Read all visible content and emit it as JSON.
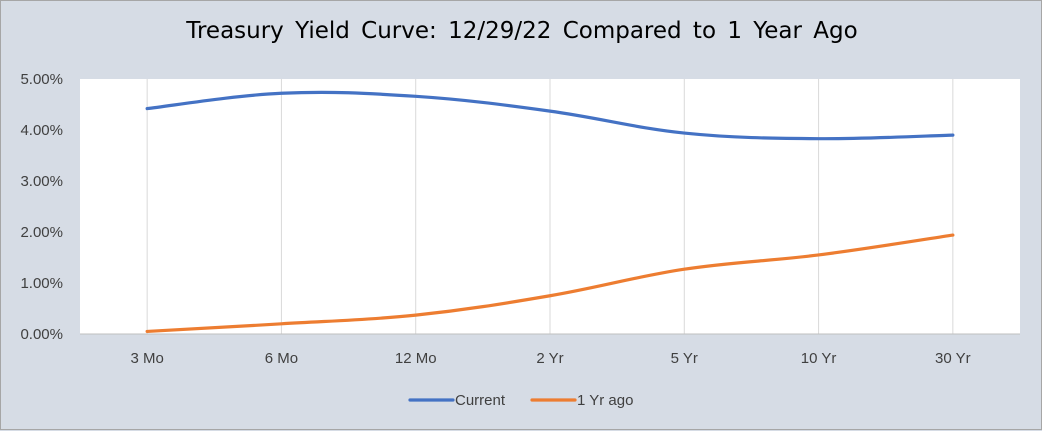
{
  "chart_data": {
    "type": "line",
    "title": "Treasury Yield Curve: 12/29/22 Compared to 1 Year Ago",
    "categories": [
      "3 Mo",
      "6 Mo",
      "12 Mo",
      "2 Yr",
      "5 Yr",
      "10 Yr",
      "30 Yr"
    ],
    "ylim": [
      0,
      5
    ],
    "yticks": [
      "0.00%",
      "1.00%",
      "2.00%",
      "3.00%",
      "4.00%",
      "5.00%"
    ],
    "grid": "vertical",
    "legend_position": "bottom",
    "series": [
      {
        "name": "Current",
        "color": "#4472c4",
        "values": [
          4.42,
          4.72,
          4.66,
          4.37,
          3.94,
          3.83,
          3.9
        ]
      },
      {
        "name": "1 Yr ago",
        "color": "#ed7d31",
        "values": [
          0.05,
          0.2,
          0.37,
          0.75,
          1.27,
          1.55,
          1.94
        ]
      }
    ],
    "plot_bg": "#ffffff",
    "page_bg": "#d6dce5"
  }
}
